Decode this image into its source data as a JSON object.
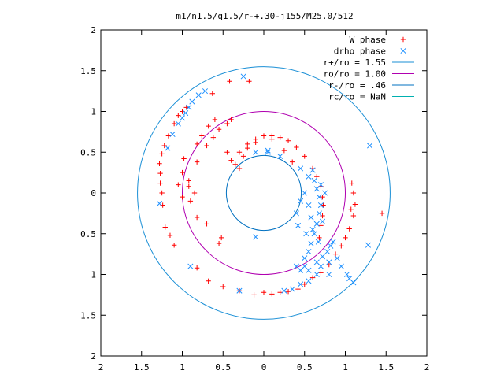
{
  "chart_data": {
    "type": "scatter",
    "title": "m1/n1.5/q1.5/r-+.30-j155/M25.0/512",
    "xlabel": "",
    "ylabel": "",
    "xlim": [
      -2,
      2
    ],
    "ylim": [
      -2,
      2
    ],
    "x_ticks": [
      -2,
      -1.5,
      -1,
      -0.5,
      0,
      0.5,
      1,
      1.5,
      2
    ],
    "x_tick_labels": [
      "2",
      "1.5",
      "1",
      "0.5",
      "0",
      "0.5",
      "1",
      "1.5",
      "2"
    ],
    "y_ticks": [
      2,
      1.5,
      1,
      0.5,
      0,
      -0.5,
      -1,
      -1.5,
      -2
    ],
    "y_tick_labels": [
      "2",
      "1.5",
      "1",
      "0.5",
      "0",
      "0.5",
      "1",
      "1.5",
      "2"
    ],
    "grid": false,
    "legend_position": "top-right",
    "series": [
      {
        "name": "W phase",
        "kind": "points",
        "marker": "plus",
        "color": "#ff0000",
        "points": [
          [
            -0.18,
            1.37
          ],
          [
            -0.42,
            1.37
          ],
          [
            -0.63,
            1.22
          ],
          [
            -0.95,
            1.05
          ],
          [
            -1.0,
            1.0
          ],
          [
            -1.05,
            0.95
          ],
          [
            -1.1,
            0.85
          ],
          [
            -1.17,
            0.7
          ],
          [
            -1.22,
            0.58
          ],
          [
            -1.25,
            0.48
          ],
          [
            -1.28,
            0.36
          ],
          [
            -1.27,
            0.24
          ],
          [
            -1.27,
            0.12
          ],
          [
            -1.25,
            0.0
          ],
          [
            -1.24,
            -0.15
          ],
          [
            -1.21,
            -0.42
          ],
          [
            -1.15,
            -0.52
          ],
          [
            -1.1,
            -0.64
          ],
          [
            -0.82,
            -0.92
          ],
          [
            -0.68,
            -1.08
          ],
          [
            -0.5,
            -1.15
          ],
          [
            -0.3,
            -1.2
          ],
          [
            -0.12,
            -1.25
          ],
          [
            0.0,
            -1.22
          ],
          [
            0.1,
            -1.24
          ],
          [
            0.2,
            -1.22
          ],
          [
            0.3,
            -1.21
          ],
          [
            0.42,
            -1.18
          ],
          [
            0.5,
            -1.12
          ],
          [
            0.6,
            -1.04
          ],
          [
            0.7,
            -0.98
          ],
          [
            0.8,
            -0.88
          ],
          [
            0.88,
            -0.75
          ],
          [
            0.95,
            -0.65
          ],
          [
            1.0,
            -0.55
          ],
          [
            1.05,
            -0.44
          ],
          [
            1.1,
            -0.28
          ],
          [
            1.12,
            -0.14
          ],
          [
            1.1,
            0.0
          ],
          [
            1.07,
            -0.2
          ],
          [
            1.08,
            0.12
          ],
          [
            1.45,
            -0.25
          ],
          [
            -1.0,
            0.25
          ],
          [
            -1.05,
            0.1
          ],
          [
            -1.0,
            -0.05
          ],
          [
            -0.98,
            0.42
          ],
          [
            -0.82,
            -0.3
          ],
          [
            -0.7,
            -0.38
          ],
          [
            -0.55,
            -0.62
          ],
          [
            -0.52,
            -0.55
          ],
          [
            -0.92,
            0.08
          ],
          [
            -0.85,
            0.0
          ],
          [
            -0.9,
            -0.1
          ],
          [
            -0.82,
            0.38
          ],
          [
            -0.7,
            0.58
          ],
          [
            -0.62,
            0.68
          ],
          [
            -0.55,
            0.78
          ],
          [
            -0.45,
            0.85
          ],
          [
            -0.4,
            0.9
          ],
          [
            -0.82,
            0.6
          ],
          [
            -0.76,
            0.7
          ],
          [
            -0.68,
            0.82
          ],
          [
            -0.6,
            0.9
          ],
          [
            -0.92,
            0.15
          ],
          [
            -0.45,
            0.5
          ],
          [
            -0.4,
            0.4
          ],
          [
            -0.35,
            0.35
          ],
          [
            -0.3,
            0.3
          ],
          [
            -0.25,
            0.45
          ],
          [
            -0.2,
            0.6
          ],
          [
            -0.1,
            0.66
          ],
          [
            0.0,
            0.7
          ],
          [
            0.1,
            0.7
          ],
          [
            0.2,
            0.68
          ],
          [
            0.3,
            0.64
          ],
          [
            0.4,
            0.56
          ],
          [
            0.5,
            0.45
          ],
          [
            0.6,
            0.3
          ],
          [
            0.65,
            0.2
          ],
          [
            0.7,
            0.08
          ],
          [
            0.72,
            -0.05
          ],
          [
            0.73,
            -0.15
          ],
          [
            0.72,
            -0.28
          ],
          [
            0.7,
            -0.4
          ],
          [
            0.68,
            -0.55
          ],
          [
            -0.3,
            0.5
          ],
          [
            -0.2,
            0.55
          ],
          [
            -0.1,
            0.62
          ],
          [
            0.1,
            0.66
          ],
          [
            0.25,
            0.52
          ],
          [
            0.35,
            0.38
          ]
        ]
      },
      {
        "name": "drho phase",
        "kind": "points",
        "marker": "cross",
        "color": "#1e90ff",
        "points": [
          [
            -0.25,
            1.43
          ],
          [
            -0.72,
            1.25
          ],
          [
            -0.8,
            1.2
          ],
          [
            -0.88,
            1.12
          ],
          [
            -0.92,
            1.05
          ],
          [
            -0.96,
            0.98
          ],
          [
            -1.0,
            0.92
          ],
          [
            -1.05,
            0.85
          ],
          [
            -1.12,
            0.72
          ],
          [
            -1.18,
            0.55
          ],
          [
            -1.28,
            -0.13
          ],
          [
            -0.9,
            -0.9
          ],
          [
            -0.3,
            -1.2
          ],
          [
            1.3,
            0.58
          ],
          [
            1.28,
            -0.64
          ],
          [
            1.1,
            -1.1
          ],
          [
            -0.1,
            0.5
          ],
          [
            0.05,
            0.5
          ],
          [
            0.2,
            0.45
          ],
          [
            -0.1,
            -0.54
          ],
          [
            0.45,
            0.3
          ],
          [
            0.55,
            0.2
          ],
          [
            0.6,
            0.28
          ],
          [
            0.62,
            0.15
          ],
          [
            0.65,
            0.05
          ],
          [
            0.68,
            -0.05
          ],
          [
            0.7,
            -0.15
          ],
          [
            0.68,
            -0.25
          ],
          [
            0.65,
            -0.38
          ],
          [
            0.62,
            -0.5
          ],
          [
            0.58,
            -0.62
          ],
          [
            0.55,
            -0.72
          ],
          [
            0.5,
            -0.8
          ],
          [
            0.5,
            -0.9
          ],
          [
            0.45,
            -0.95
          ],
          [
            0.4,
            -0.9
          ],
          [
            0.55,
            -0.95
          ],
          [
            0.65,
            -0.85
          ],
          [
            0.72,
            -0.78
          ],
          [
            0.78,
            -0.72
          ],
          [
            0.82,
            -0.65
          ],
          [
            0.85,
            -0.6
          ],
          [
            0.4,
            -0.25
          ],
          [
            0.45,
            -0.1
          ],
          [
            0.5,
            0.0
          ],
          [
            0.55,
            -0.15
          ],
          [
            0.58,
            -0.3
          ],
          [
            0.6,
            -0.45
          ],
          [
            0.7,
            0.1
          ],
          [
            0.75,
            0.0
          ],
          [
            0.72,
            -0.35
          ],
          [
            0.67,
            -0.6
          ],
          [
            0.7,
            -0.9
          ],
          [
            0.8,
            -0.85
          ],
          [
            0.9,
            -0.8
          ],
          [
            0.95,
            -0.9
          ],
          [
            1.05,
            -1.05
          ],
          [
            1.02,
            -1.0
          ],
          [
            0.8,
            -1.0
          ],
          [
            0.65,
            -1.0
          ],
          [
            0.55,
            -1.08
          ],
          [
            0.45,
            -1.12
          ],
          [
            0.35,
            -1.18
          ],
          [
            0.25,
            -1.2
          ],
          [
            0.05,
            0.52
          ],
          [
            0.42,
            -0.4
          ],
          [
            0.52,
            -0.5
          ]
        ]
      },
      {
        "name": "r+/ro = 1.55",
        "kind": "circle",
        "radius": 1.55,
        "color": "#1a8fd6"
      },
      {
        "name": "ro/ro = 1.00",
        "kind": "circle",
        "radius": 1.0,
        "color": "#b000b0"
      },
      {
        "name": "r-/ro = .46",
        "kind": "circle",
        "radius": 0.46,
        "color": "#0070c0"
      },
      {
        "name": "rc/ro = NaN",
        "kind": "circle",
        "radius": null,
        "color": "#00b0b0"
      }
    ]
  }
}
